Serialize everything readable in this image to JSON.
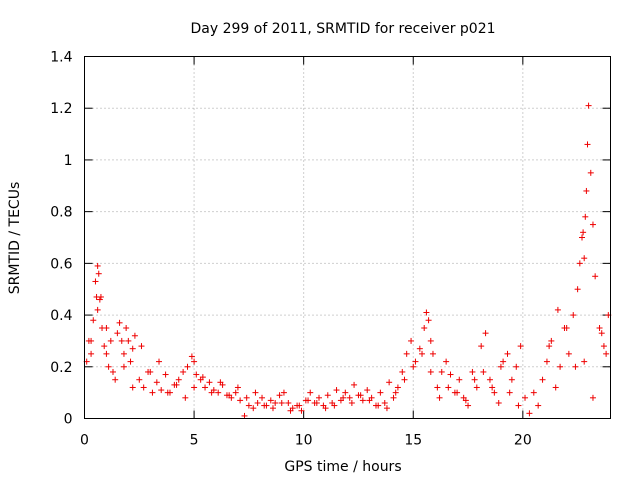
{
  "chart_data": {
    "type": "scatter",
    "title": "Day 299 of 2011, SRMTID for receiver p021",
    "xlabel": "GPS time / hours",
    "ylabel": "SRMTID / TECUs",
    "xlim": [
      0,
      24
    ],
    "ylim": [
      0,
      1.4
    ],
    "xticks": [
      0,
      5,
      10,
      15,
      20
    ],
    "xtick_labels": [
      "0",
      "5",
      "10",
      "15",
      "20"
    ],
    "yticks": [
      0,
      0.2,
      0.4,
      0.6,
      0.8,
      1.0,
      1.2,
      1.4
    ],
    "ytick_labels": [
      "0",
      "0.2",
      "0.4",
      "0.6",
      "0.8",
      "1",
      "1.2",
      "1.4"
    ],
    "grid": true,
    "marker": "+",
    "color": "#ee0000",
    "series": [
      {
        "name": "SRMTID",
        "x": [
          0.1,
          0.2,
          0.3,
          0.4,
          0.5,
          0.55,
          0.6,
          0.65,
          0.7,
          0.75,
          0.8,
          0.9,
          1.0,
          1.1,
          1.2,
          1.3,
          1.5,
          1.6,
          1.7,
          1.8,
          1.9,
          2.0,
          2.1,
          2.2,
          2.3,
          2.5,
          2.7,
          2.9,
          3.1,
          3.3,
          3.5,
          3.7,
          3.9,
          4.1,
          4.3,
          4.5,
          4.7,
          4.9,
          5.0,
          5.1,
          5.3,
          5.5,
          5.7,
          5.9,
          6.1,
          6.3,
          6.5,
          6.7,
          6.9,
          7.1,
          7.3,
          7.5,
          7.7,
          7.9,
          8.1,
          8.3,
          8.5,
          8.7,
          8.9,
          9.1,
          9.3,
          9.5,
          9.7,
          9.9,
          10.1,
          10.3,
          10.5,
          10.7,
          10.9,
          11.1,
          11.3,
          11.5,
          11.7,
          11.9,
          12.1,
          12.3,
          12.5,
          12.7,
          12.9,
          13.1,
          13.3,
          13.5,
          13.7,
          13.9,
          14.1,
          14.3,
          14.5,
          14.7,
          14.9,
          15.1,
          15.3,
          15.5,
          15.6,
          15.7,
          15.8,
          15.9,
          16.1,
          16.3,
          16.5,
          16.7,
          16.9,
          17.1,
          17.3,
          17.5,
          17.7,
          17.9,
          18.1,
          18.3,
          18.5,
          18.7,
          18.9,
          19.1,
          19.3,
          19.5,
          19.7,
          19.9,
          20.1,
          20.3,
          20.5,
          20.7,
          20.9,
          21.1,
          21.3,
          21.5,
          21.7,
          21.9,
          22.1,
          22.3,
          22.5,
          22.6,
          22.7,
          22.75,
          22.8,
          22.85,
          22.9,
          22.95,
          23.0,
          23.1,
          23.2,
          23.3,
          23.5,
          23.7,
          23.9,
          0.3,
          0.6,
          1.0,
          1.4,
          1.8,
          2.2,
          2.6,
          3.0,
          3.4,
          3.8,
          4.2,
          4.6,
          5.0,
          5.4,
          5.8,
          6.2,
          6.6,
          7.0,
          7.4,
          7.8,
          8.2,
          8.6,
          9.0,
          9.4,
          9.8,
          10.2,
          10.6,
          11.0,
          11.4,
          11.8,
          12.2,
          12.6,
          13.0,
          13.4,
          13.8,
          14.2,
          14.6,
          15.0,
          15.4,
          15.8,
          16.2,
          16.6,
          17.0,
          17.4,
          17.8,
          18.2,
          18.6,
          19.0,
          19.4,
          19.8,
          21.2,
          21.6,
          22.0,
          22.4,
          22.8,
          23.2,
          23.6,
          23.8
        ],
        "y": [
          0.22,
          0.3,
          0.25,
          0.38,
          0.53,
          0.47,
          0.59,
          0.56,
          0.46,
          0.47,
          0.35,
          0.28,
          0.25,
          0.2,
          0.3,
          0.18,
          0.33,
          0.37,
          0.3,
          0.25,
          0.35,
          0.3,
          0.22,
          0.27,
          0.32,
          0.15,
          0.12,
          0.18,
          0.1,
          0.14,
          0.11,
          0.17,
          0.1,
          0.13,
          0.15,
          0.18,
          0.2,
          0.24,
          0.22,
          0.17,
          0.15,
          0.12,
          0.14,
          0.11,
          0.1,
          0.13,
          0.09,
          0.08,
          0.1,
          0.07,
          0.01,
          0.05,
          0.04,
          0.06,
          0.08,
          0.05,
          0.07,
          0.06,
          0.09,
          0.1,
          0.06,
          0.04,
          0.05,
          0.03,
          0.07,
          0.1,
          0.06,
          0.08,
          0.05,
          0.09,
          0.06,
          0.11,
          0.07,
          0.1,
          0.08,
          0.13,
          0.09,
          0.07,
          0.11,
          0.08,
          0.05,
          0.1,
          0.06,
          0.14,
          0.08,
          0.12,
          0.18,
          0.25,
          0.3,
          0.22,
          0.27,
          0.35,
          0.41,
          0.38,
          0.3,
          0.25,
          0.12,
          0.18,
          0.22,
          0.17,
          0.1,
          0.15,
          0.08,
          0.05,
          0.18,
          0.12,
          0.28,
          0.33,
          0.15,
          0.1,
          0.06,
          0.22,
          0.25,
          0.15,
          0.2,
          0.28,
          0.08,
          0.02,
          0.1,
          0.05,
          0.15,
          0.22,
          0.3,
          0.12,
          0.2,
          0.35,
          0.25,
          0.4,
          0.5,
          0.6,
          0.7,
          0.72,
          0.62,
          0.78,
          0.88,
          1.06,
          1.21,
          0.95,
          0.75,
          0.55,
          0.35,
          0.28,
          0.4,
          0.3,
          0.42,
          0.35,
          0.15,
          0.2,
          0.12,
          0.28,
          0.18,
          0.22,
          0.1,
          0.13,
          0.08,
          0.12,
          0.16,
          0.1,
          0.14,
          0.09,
          0.12,
          0.08,
          0.1,
          0.05,
          0.04,
          0.06,
          0.03,
          0.05,
          0.07,
          0.06,
          0.04,
          0.05,
          0.08,
          0.06,
          0.09,
          0.07,
          0.05,
          0.04,
          0.1,
          0.15,
          0.2,
          0.25,
          0.18,
          0.08,
          0.12,
          0.1,
          0.07,
          0.15,
          0.18,
          0.12,
          0.2,
          0.1,
          0.05,
          0.28,
          0.42,
          0.35,
          0.2,
          0.22,
          0.08,
          0.33,
          0.25
        ]
      }
    ]
  }
}
